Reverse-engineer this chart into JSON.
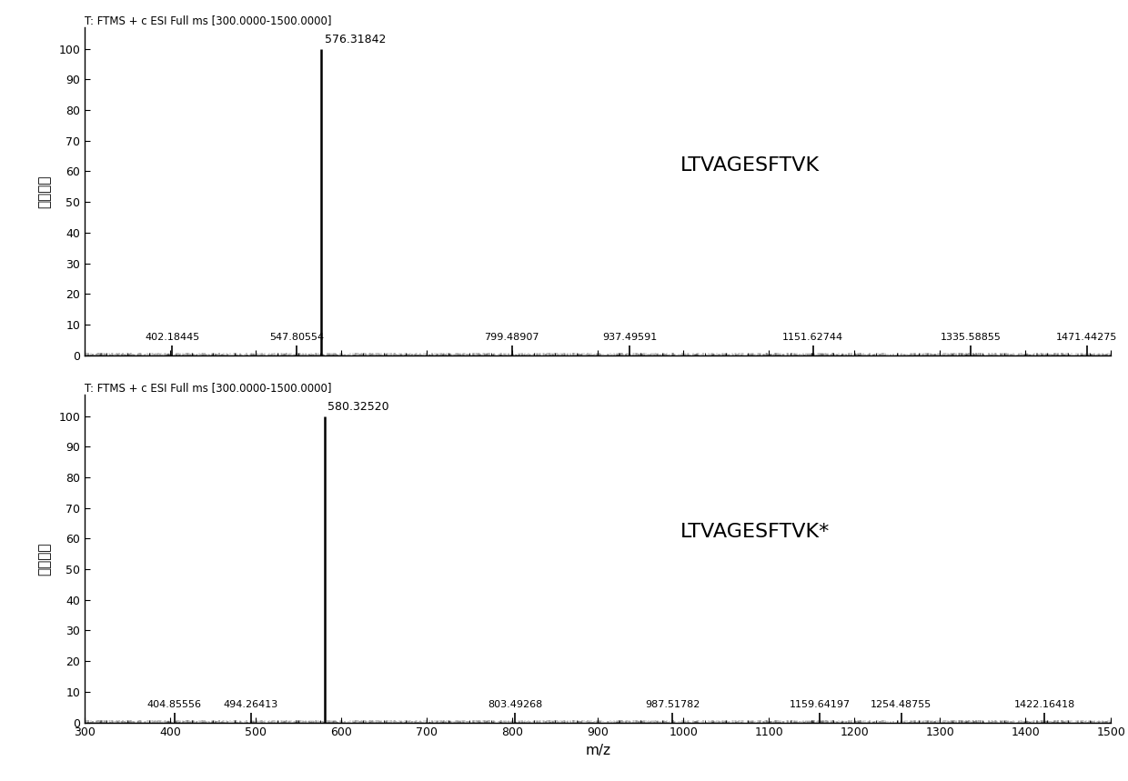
{
  "panel1": {
    "title": "T: FTMS + c ESI Full ms [300.0000-1500.0000]",
    "label": "LTVAGESFTVK",
    "peaks": [
      {
        "mz": 402.18445,
        "intensity": 3.2
      },
      {
        "mz": 547.80554,
        "intensity": 3.2
      },
      {
        "mz": 576.31842,
        "intensity": 100.0
      },
      {
        "mz": 799.48907,
        "intensity": 3.2
      },
      {
        "mz": 937.49591,
        "intensity": 3.2
      },
      {
        "mz": 1151.62744,
        "intensity": 3.2
      },
      {
        "mz": 1335.58855,
        "intensity": 3.2
      },
      {
        "mz": 1471.44275,
        "intensity": 3.2
      }
    ]
  },
  "panel2": {
    "title": "T: FTMS + c ESI Full ms [300.0000-1500.0000]",
    "label": "LTVAGESFTVK*",
    "peaks": [
      {
        "mz": 404.85556,
        "intensity": 3.2
      },
      {
        "mz": 494.26413,
        "intensity": 3.2
      },
      {
        "mz": 580.3252,
        "intensity": 100.0
      },
      {
        "mz": 803.49268,
        "intensity": 3.2
      },
      {
        "mz": 987.51782,
        "intensity": 3.2
      },
      {
        "mz": 1159.64197,
        "intensity": 3.2
      },
      {
        "mz": 1254.48755,
        "intensity": 3.2
      },
      {
        "mz": 1422.16418,
        "intensity": 3.2
      }
    ]
  },
  "xmin": 300,
  "xmax": 1500,
  "ymin": 0,
  "ymax": 100,
  "xlabel": "m/z",
  "ylabel": "相对丰度",
  "background_color": "#ffffff",
  "line_color": "#000000",
  "peak_label_fontsize": 9,
  "small_peak_label_fontsize": 8,
  "tick_fontsize": 9,
  "title_fontsize": 8.5,
  "peptide_label_fontsize": 16,
  "ylabel_fontsize": 11,
  "xlabel_fontsize": 11
}
